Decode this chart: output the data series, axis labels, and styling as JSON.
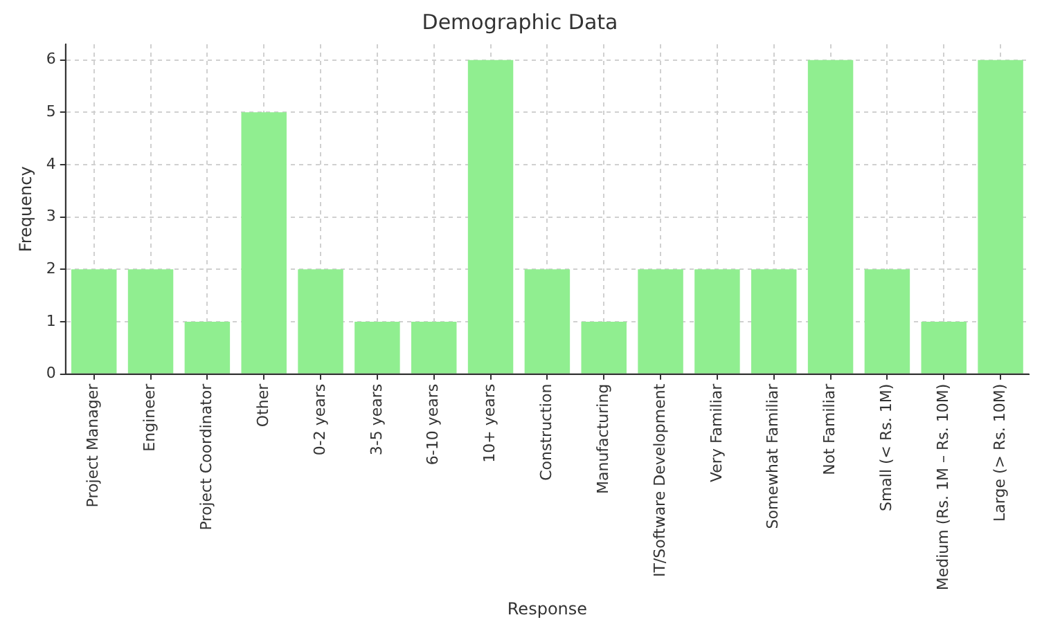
{
  "chart_data": {
    "type": "bar",
    "title": "Demographic Data",
    "xlabel": "Response",
    "ylabel": "Frequency",
    "categories": [
      "Project Manager",
      "Engineer",
      "Project Coordinator",
      "Other",
      "0-2 years",
      "3-5 years",
      "6-10 years",
      "10+ years",
      "Construction",
      "Manufacturing",
      "IT/Software Development",
      "Very Familiar",
      "Somewhat Familiar",
      "Not Familiar",
      "Small (< Rs. 1M)",
      "Medium (Rs. 1M – Rs. 10M)",
      "Large (> Rs. 10M)"
    ],
    "values": [
      2,
      2,
      1,
      5,
      2,
      1,
      1,
      6,
      2,
      1,
      2,
      2,
      2,
      6,
      2,
      1,
      6
    ],
    "color": "#90ee90",
    "ylim": [
      0,
      6.3
    ],
    "yticks": [
      0,
      1,
      2,
      3,
      4,
      5,
      6
    ],
    "grid": true,
    "legend": false
  }
}
